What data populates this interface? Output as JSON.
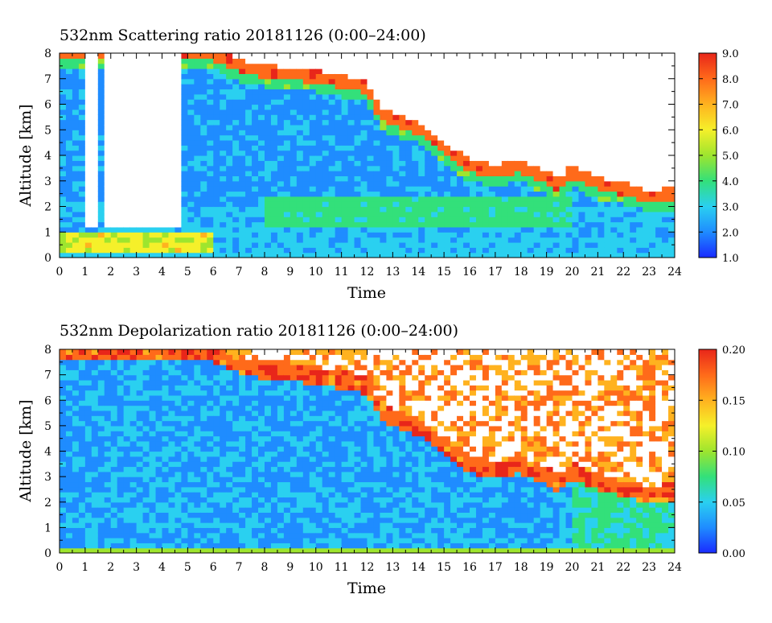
{
  "chart_data": [
    {
      "type": "heatmap",
      "title": "532nm Scattering ratio  20181126 (0:00–24:00)",
      "xlabel": "Time",
      "ylabel": "Altitude [km]",
      "xlim": [
        0,
        24
      ],
      "ylim": [
        0,
        8
      ],
      "x_ticks": [
        "0",
        "1",
        "2",
        "3",
        "4",
        "5",
        "6",
        "7",
        "8",
        "9",
        "10",
        "11",
        "12",
        "13",
        "14",
        "15",
        "16",
        "17",
        "18",
        "19",
        "20",
        "21",
        "22",
        "23",
        "24"
      ],
      "y_ticks": [
        "0",
        "1",
        "2",
        "3",
        "4",
        "5",
        "6",
        "7",
        "8"
      ],
      "colorbar": {
        "range": [
          1.0,
          9.0
        ],
        "ticks": [
          "1.0",
          "2.0",
          "3.0",
          "4.0",
          "5.0",
          "6.0",
          "7.0",
          "8.0",
          "9.0"
        ]
      },
      "cloud_base_km": [
        [
          0,
          8.0
        ],
        [
          6,
          7.9
        ],
        [
          7,
          7.4
        ],
        [
          8,
          7.2
        ],
        [
          9,
          7.1
        ],
        [
          10,
          7.0
        ],
        [
          11,
          6.8
        ],
        [
          12,
          6.6
        ],
        [
          12.5,
          5.6
        ],
        [
          13,
          5.3
        ],
        [
          14,
          5.0
        ],
        [
          15,
          4.2
        ],
        [
          16,
          3.5
        ],
        [
          17,
          3.3
        ],
        [
          18,
          3.5
        ],
        [
          19,
          3.0
        ],
        [
          19.5,
          2.8
        ],
        [
          20,
          3.3
        ],
        [
          21,
          2.8
        ],
        [
          22,
          2.6
        ],
        [
          23,
          2.3
        ],
        [
          24,
          2.4
        ]
      ],
      "clear_gaps_h": [
        [
          1.0,
          1.4
        ],
        [
          1.7,
          3.9
        ],
        [
          4.1,
          4.8
        ]
      ],
      "low_layer_km": [
        0.3,
        1.0
      ]
    },
    {
      "type": "heatmap",
      "title": "532nm Depolarization ratio  20181126 (0:00–24:00)",
      "xlabel": "Time",
      "ylabel": "Altitude [km]",
      "xlim": [
        0,
        24
      ],
      "ylim": [
        0,
        8
      ],
      "x_ticks": [
        "0",
        "1",
        "2",
        "3",
        "4",
        "5",
        "6",
        "7",
        "8",
        "9",
        "10",
        "11",
        "12",
        "13",
        "14",
        "15",
        "16",
        "17",
        "18",
        "19",
        "20",
        "21",
        "22",
        "23",
        "24"
      ],
      "y_ticks": [
        "0",
        "1",
        "2",
        "3",
        "4",
        "5",
        "6",
        "7",
        "8"
      ],
      "colorbar": {
        "range": [
          0.0,
          0.2
        ],
        "ticks": [
          "0.00",
          "0.05",
          "0.10",
          "0.15",
          "0.20"
        ]
      },
      "cloud_base_km": [
        [
          0,
          8.0
        ],
        [
          6,
          7.9
        ],
        [
          7,
          7.4
        ],
        [
          8,
          7.2
        ],
        [
          9,
          7.1
        ],
        [
          10,
          7.0
        ],
        [
          11,
          6.8
        ],
        [
          12,
          6.6
        ],
        [
          12.5,
          5.6
        ],
        [
          13,
          5.3
        ],
        [
          14,
          5.0
        ],
        [
          15,
          4.2
        ],
        [
          16,
          3.5
        ],
        [
          17,
          3.3
        ],
        [
          18,
          3.5
        ],
        [
          19,
          3.0
        ],
        [
          19.5,
          2.8
        ],
        [
          20,
          3.3
        ],
        [
          21,
          2.8
        ],
        [
          22,
          2.6
        ],
        [
          23,
          2.3
        ],
        [
          24,
          2.4
        ]
      ]
    }
  ],
  "colors": {
    "scale": [
      "#1a2bff",
      "#1f8cff",
      "#2ad0f0",
      "#33e07a",
      "#9ee52e",
      "#f5f02a",
      "#ffb21f",
      "#ff6a1a",
      "#e8261a"
    ],
    "cloud_white": "#ffffff",
    "frame": "#000000"
  }
}
